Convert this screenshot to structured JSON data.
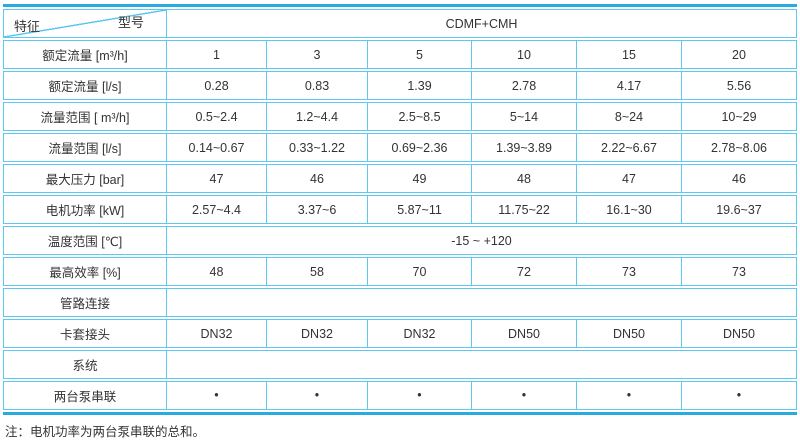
{
  "header": {
    "corner_top": "型号",
    "corner_bottom": "特征",
    "model_series": "CDMF+CMH"
  },
  "rows": [
    {
      "label": "额定流量 [m³/h]",
      "values": [
        "1",
        "3",
        "5",
        "10",
        "15",
        "20"
      ]
    },
    {
      "label": "额定流量 [l/s]",
      "values": [
        "0.28",
        "0.83",
        "1.39",
        "2.78",
        "4.17",
        "5.56"
      ]
    },
    {
      "label": "流量范围 [ m³/h]",
      "values": [
        "0.5~2.4",
        "1.2~4.4",
        "2.5~8.5",
        "5~14",
        "8~24",
        "10~29"
      ]
    },
    {
      "label": "流量范围 [l/s]",
      "values": [
        "0.14~0.67",
        "0.33~1.22",
        "0.69~2.36",
        "1.39~3.89",
        "2.22~6.67",
        "2.78~8.06"
      ]
    },
    {
      "label": "最大压力 [bar]",
      "values": [
        "47",
        "46",
        "49",
        "48",
        "47",
        "46"
      ]
    },
    {
      "label": "电机功率 [kW]",
      "values": [
        "2.57~4.4",
        "3.37~6",
        "5.87~11",
        "11.75~22",
        "16.1~30",
        "19.6~37"
      ]
    },
    {
      "label": "温度范围 [℃]",
      "span": "-15 ~ +120"
    },
    {
      "label": "最高效率 [%]",
      "values": [
        "48",
        "58",
        "70",
        "72",
        "73",
        "73"
      ]
    },
    {
      "label": "管路连接",
      "span": ""
    },
    {
      "label": "卡套接头",
      "values": [
        "DN32",
        "DN32",
        "DN32",
        "DN50",
        "DN50",
        "DN50"
      ]
    },
    {
      "label": "系统",
      "span": ""
    },
    {
      "label": "两台泵串联",
      "values": [
        "•",
        "•",
        "•",
        "•",
        "•",
        "•"
      ],
      "bullet": true
    }
  ],
  "footnote": "注：电机功率为两台泵串联的总和。",
  "colors": {
    "accent": "#29abe2",
    "grid": "#5ec8f2",
    "text": "#333333"
  }
}
